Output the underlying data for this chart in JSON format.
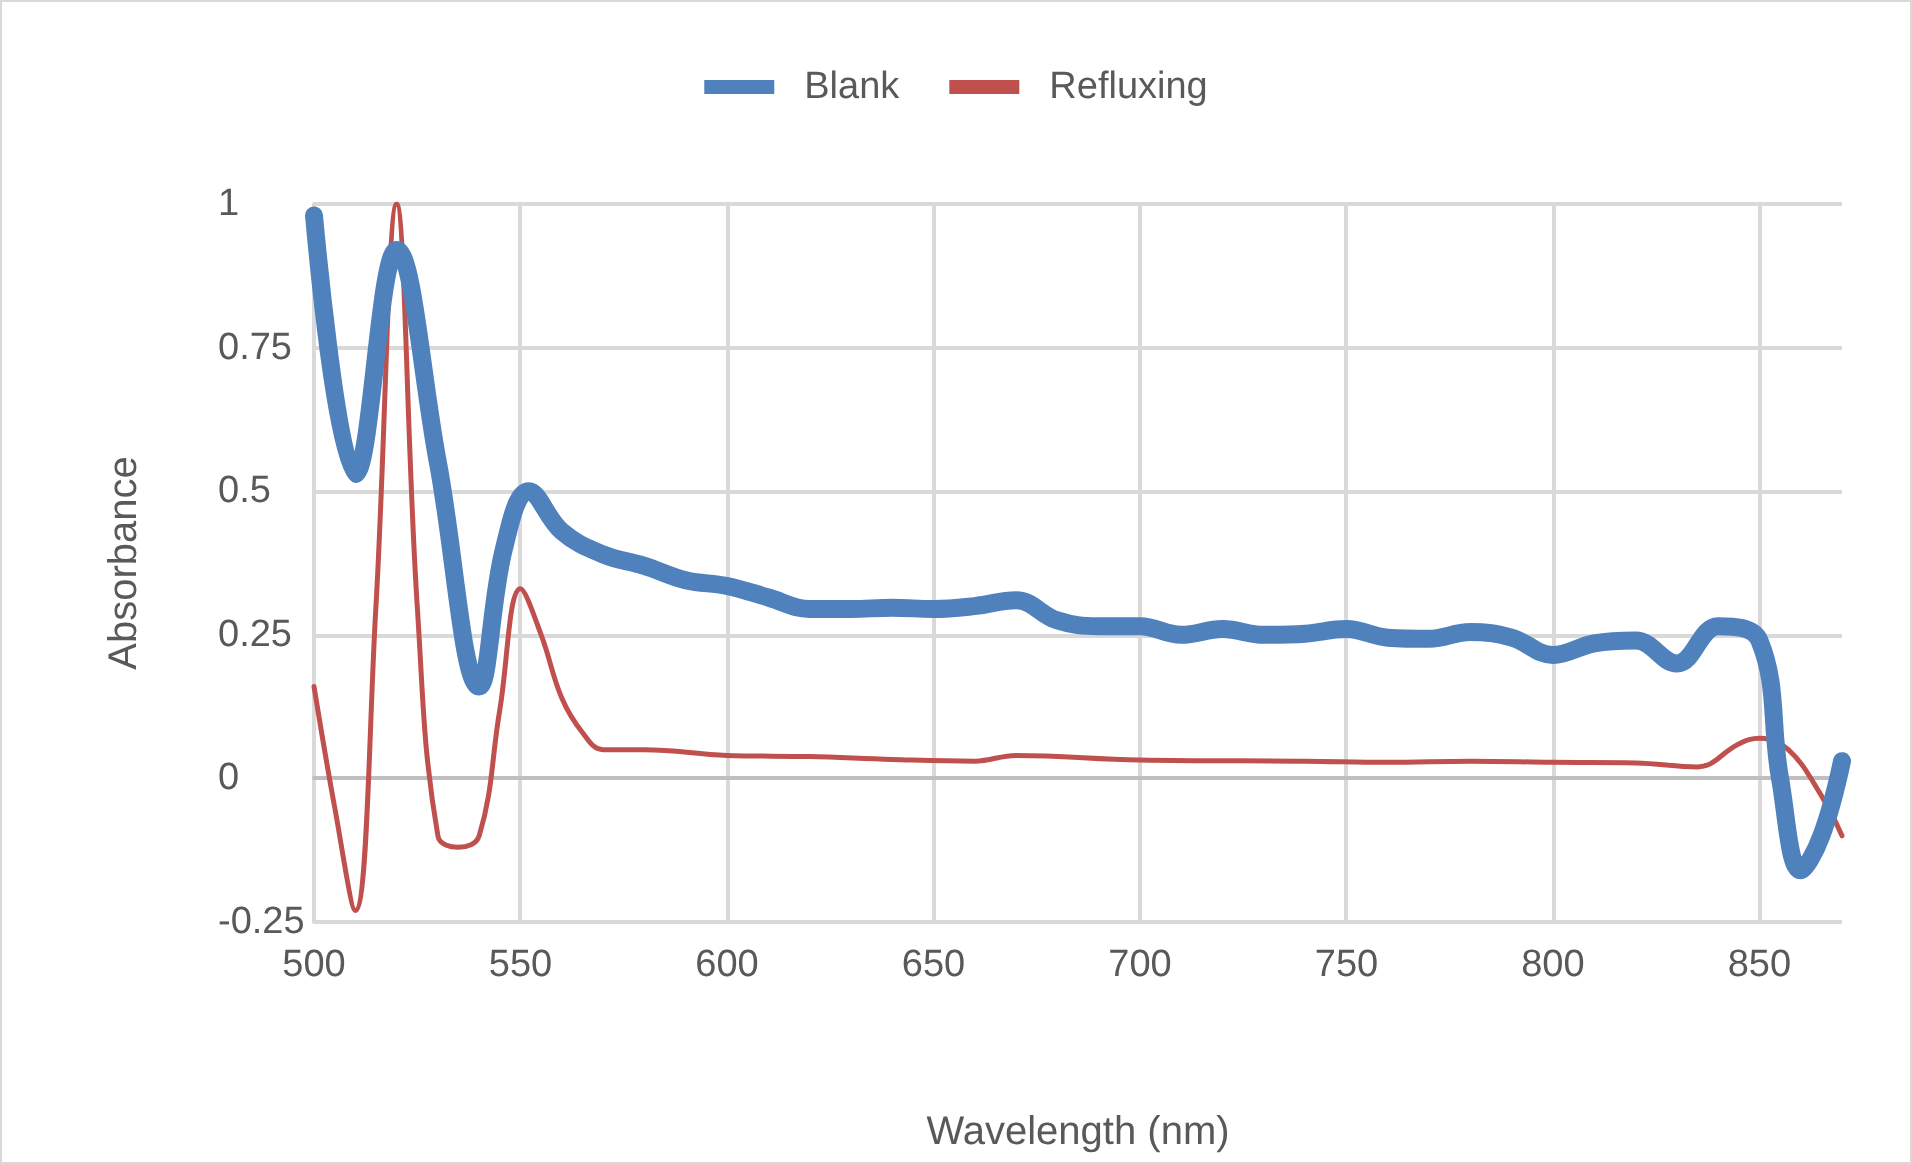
{
  "chart_data": {
    "type": "line",
    "xlabel": "Wavelength (nm)",
    "ylabel": "Absorbance",
    "xlim": [
      500,
      870
    ],
    "xticks": [
      500,
      550,
      600,
      650,
      700,
      750,
      800,
      850
    ],
    "ylim": [
      -0.25,
      1
    ],
    "yticks": [
      -0.25,
      0,
      0.25,
      0.5,
      0.75,
      1
    ],
    "grid": true,
    "legend": "top",
    "marker": "none",
    "line_style": "solid",
    "series": [
      {
        "name": "Blank",
        "color": "#4f81bd",
        "x": [
          500,
          510,
          520,
          530,
          540,
          546,
          552,
          560,
          570,
          580,
          590,
          600,
          610,
          620,
          630,
          640,
          650,
          660,
          670,
          680,
          690,
          700,
          710,
          720,
          730,
          740,
          750,
          760,
          770,
          780,
          790,
          800,
          810,
          820,
          830,
          840,
          850,
          855,
          860,
          865,
          870
        ],
        "values": [
          0.98,
          0.53,
          0.92,
          0.55,
          0.16,
          0.4,
          0.5,
          0.43,
          0.39,
          0.37,
          0.345,
          0.335,
          0.315,
          0.295,
          0.295,
          0.297,
          0.295,
          0.3,
          0.31,
          0.275,
          0.265,
          0.265,
          0.25,
          0.26,
          0.25,
          0.252,
          0.26,
          0.245,
          0.243,
          0.255,
          0.245,
          0.215,
          0.235,
          0.24,
          0.2,
          0.265,
          0.24,
          0.0,
          -0.16,
          -0.1,
          0.03
        ]
      },
      {
        "name": "Refluxing",
        "color": "#c0504d",
        "x": [
          500,
          505,
          510,
          515,
          520,
          525,
          530,
          535,
          540,
          545,
          550,
          555,
          560,
          565,
          570,
          580,
          600,
          620,
          640,
          660,
          670,
          700,
          740,
          760,
          780,
          800,
          820,
          835,
          845,
          850,
          857,
          865,
          870
        ],
        "values": [
          0.16,
          -0.05,
          -0.23,
          0.3,
          1.0,
          0.3,
          -0.1,
          -0.12,
          -0.1,
          0.12,
          0.33,
          0.25,
          0.14,
          0.08,
          0.05,
          0.05,
          0.04,
          0.038,
          0.033,
          0.03,
          0.04,
          0.032,
          0.03,
          0.028,
          0.03,
          0.028,
          0.027,
          0.02,
          0.06,
          0.07,
          0.05,
          -0.03,
          -0.1
        ]
      }
    ]
  }
}
